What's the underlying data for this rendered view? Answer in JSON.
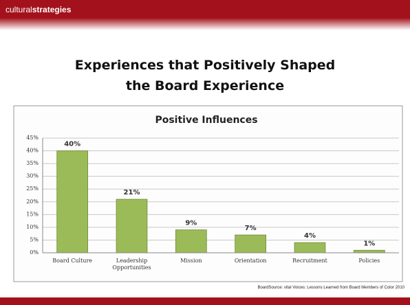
{
  "header": {
    "brand_light": "cultural",
    "brand_bold": "strategies"
  },
  "slide_title_lines": [
    "Experiences that Positively Shaped",
    "the Board Experience"
  ],
  "chart_data": {
    "type": "bar",
    "title": "Positive Influences",
    "categories": [
      "Board Culture",
      "Leadership Opportunities",
      "Mission",
      "Orientation",
      "Recruitment",
      "Policies"
    ],
    "values": [
      40,
      21,
      9,
      7,
      4,
      1
    ],
    "value_labels": [
      "40%",
      "21%",
      "9%",
      "7%",
      "4%",
      "1%"
    ],
    "color": "#9bbb59",
    "ylim": [
      0,
      45
    ],
    "yticks": [
      {
        "value": 0,
        "label": "0%"
      },
      {
        "value": 5,
        "label": "5%"
      },
      {
        "value": 10,
        "label": "10%"
      },
      {
        "value": 15,
        "label": "15%"
      },
      {
        "value": 20,
        "label": "20%"
      },
      {
        "value": 25,
        "label": "25%"
      },
      {
        "value": 30,
        "label": "30%"
      },
      {
        "value": 35,
        "label": "35%"
      },
      {
        "value": 40,
        "label": "40%"
      },
      {
        "value": 45,
        "label": "45%"
      }
    ],
    "grid": true
  },
  "source": "BoardSource: vital Voices: Lessons Learned from Board Members of Color 2010"
}
